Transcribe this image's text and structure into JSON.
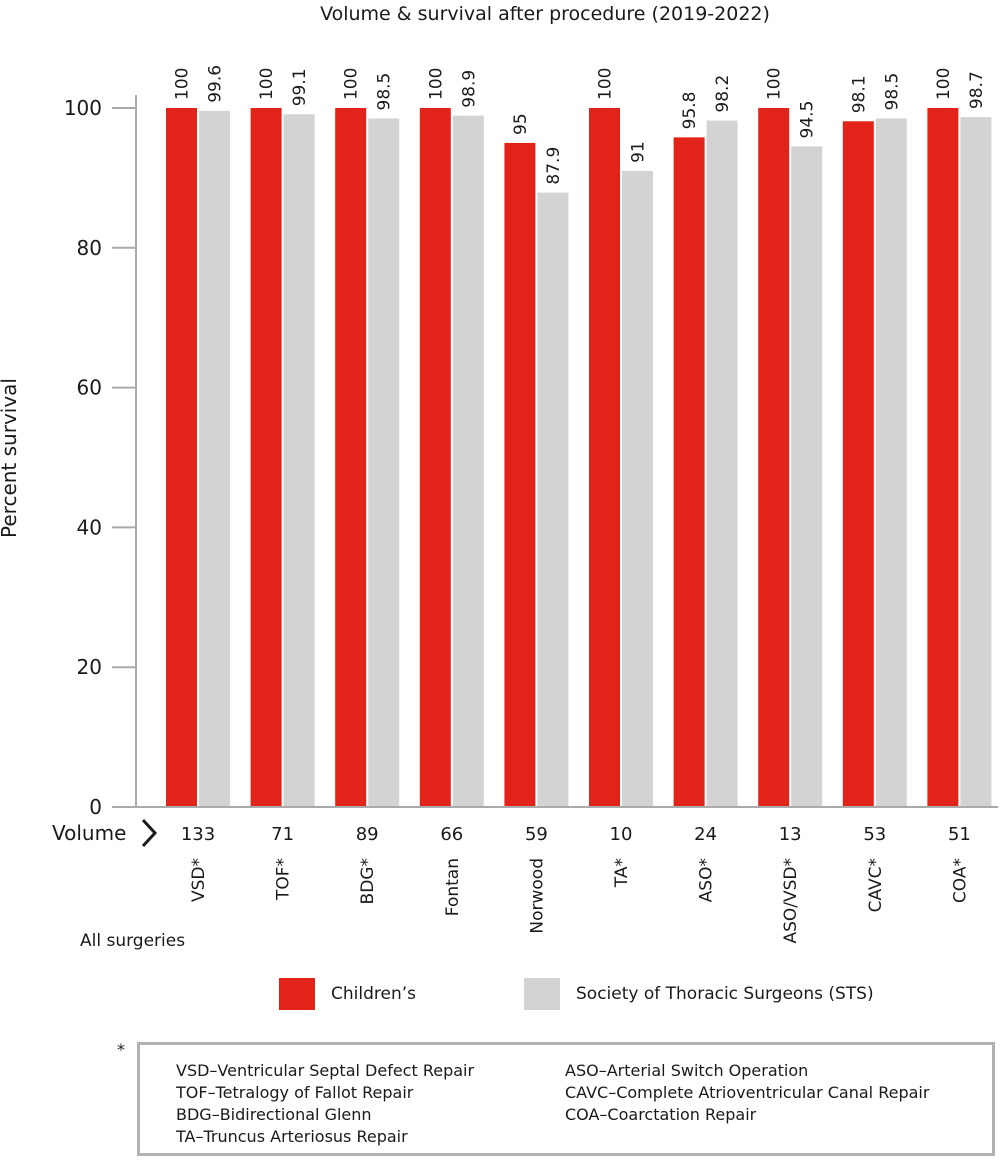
{
  "chart_data": {
    "type": "bar",
    "title": "Volume & survival after procedure (2019-2022)",
    "ylabel": "Percent survival",
    "ylim": [
      0,
      100
    ],
    "yticks": [
      0,
      20,
      40,
      60,
      80,
      100
    ],
    "categories": [
      "VSD*",
      "TOF*",
      "BDG*",
      "Fontan",
      "Norwood",
      "TA*",
      "ASO*",
      "ASO/VSD*",
      "CAVC*",
      "COA*"
    ],
    "volume_label": "Volume",
    "volumes": [
      "133",
      "71",
      "89",
      "66",
      "59",
      "10",
      "24",
      "13",
      "53",
      "51"
    ],
    "group_label": "All surgeries",
    "series": [
      {
        "name": "Children's",
        "color": "#e2231a",
        "values": [
          100,
          100,
          100,
          100,
          95,
          100,
          95.8,
          100,
          98.1,
          100
        ]
      },
      {
        "name": "Society of Thoracic Surgeons (STS)",
        "color": "#d3d3d3",
        "values": [
          99.6,
          99.1,
          98.5,
          98.9,
          87.9,
          91,
          98.2,
          94.5,
          98.5,
          98.7
        ]
      }
    ],
    "grid": false,
    "legend_position": "bottom"
  },
  "legend": {
    "item1": "Children’s",
    "item2": "Society of Thoracic Surgeons (STS)"
  },
  "notes": {
    "marker": "*",
    "left": [
      "VSD–Ventricular Septal Defect Repair",
      "TOF–Tetralogy of Fallot Repair",
      "BDG–Bidirectional Glenn",
      "TA–Truncus Arteriosus Repair"
    ],
    "right": [
      "ASO–Arterial Switch Operation",
      "CAVC–Complete Atrioventricular Canal Repair",
      "COA–Coarctation Repair"
    ]
  }
}
